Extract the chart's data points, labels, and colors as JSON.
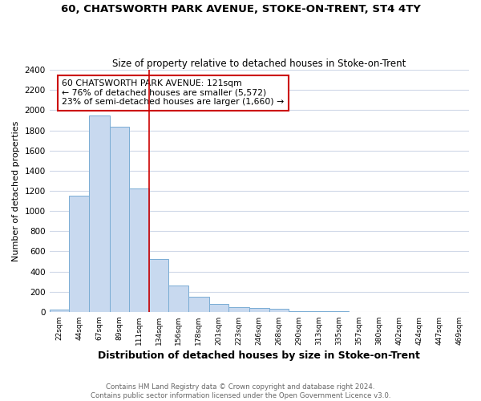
{
  "title": "60, CHATSWORTH PARK AVENUE, STOKE-ON-TRENT, ST4 4TY",
  "subtitle": "Size of property relative to detached houses in Stoke-on-Trent",
  "xlabel": "Distribution of detached houses by size in Stoke-on-Trent",
  "ylabel": "Number of detached properties",
  "bar_labels": [
    "22sqm",
    "44sqm",
    "67sqm",
    "89sqm",
    "111sqm",
    "134sqm",
    "156sqm",
    "178sqm",
    "201sqm",
    "223sqm",
    "246sqm",
    "268sqm",
    "290sqm",
    "313sqm",
    "335sqm",
    "357sqm",
    "380sqm",
    "402sqm",
    "424sqm",
    "447sqm",
    "469sqm"
  ],
  "bar_values": [
    25,
    1150,
    1950,
    1840,
    1220,
    520,
    265,
    148,
    75,
    48,
    35,
    28,
    8,
    5,
    3,
    2,
    1,
    1,
    0,
    0,
    0
  ],
  "bar_color": "#c8d9ef",
  "bar_edge_color": "#7aadd4",
  "grid_color": "#d0d8e8",
  "annotation_text": "60 CHATSWORTH PARK AVENUE: 121sqm\n← 76% of detached houses are smaller (5,572)\n23% of semi-detached houses are larger (1,660) →",
  "annotation_box_color": "#ffffff",
  "annotation_box_edge": "#cc0000",
  "vline_color": "#cc0000",
  "ylim": [
    0,
    2400
  ],
  "yticks": [
    0,
    200,
    400,
    600,
    800,
    1000,
    1200,
    1400,
    1600,
    1800,
    2000,
    2200,
    2400
  ],
  "footer_line1": "Contains HM Land Registry data © Crown copyright and database right 2024.",
  "footer_line2": "Contains public sector information licensed under the Open Government Licence v3.0.",
  "bin_edges": [
    11,
    33,
    55,
    78,
    100,
    122,
    144,
    166,
    189,
    211,
    234,
    256,
    278,
    301,
    323,
    345,
    368,
    390,
    412,
    435,
    457,
    479
  ]
}
